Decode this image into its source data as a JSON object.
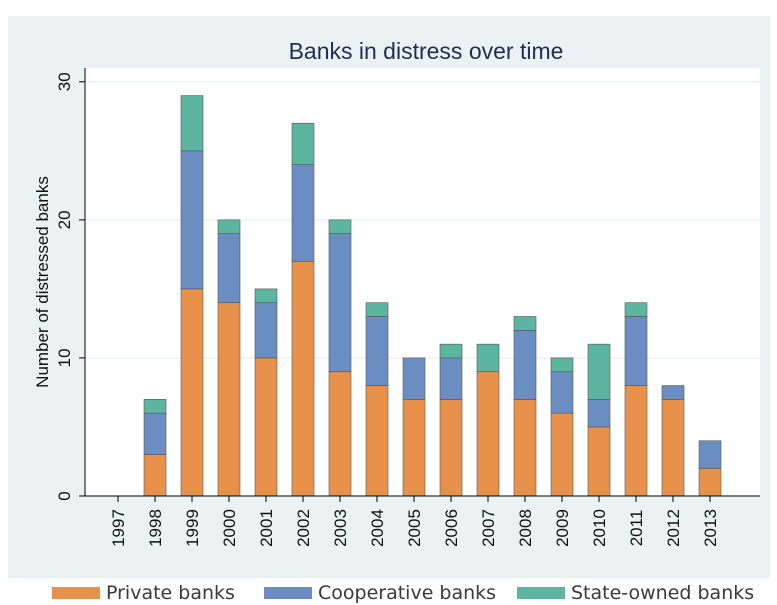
{
  "chart_data": {
    "type": "bar",
    "stacked": true,
    "title": "Banks in distress over time",
    "xlabel": "",
    "ylabel": "Number of distressed banks",
    "categories": [
      "1997",
      "1998",
      "1999",
      "2000",
      "2001",
      "2002",
      "2003",
      "2004",
      "2005",
      "2006",
      "2007",
      "2008",
      "2009",
      "2010",
      "2011",
      "2012",
      "2013"
    ],
    "ylim": [
      0,
      31
    ],
    "yticks": [
      "0",
      "10",
      "20",
      "30"
    ],
    "grid": true,
    "legend_position": "bottom",
    "series": [
      {
        "name": "Private banks",
        "color": "#E8914A",
        "values": [
          0,
          3,
          15,
          14,
          10,
          17,
          9,
          8,
          7,
          7,
          9,
          7,
          6,
          5,
          8,
          7,
          2
        ]
      },
      {
        "name": "Cooperative banks",
        "color": "#6B8EC2",
        "values": [
          0,
          3,
          10,
          5,
          4,
          7,
          10,
          5,
          3,
          3,
          0,
          5,
          3,
          2,
          5,
          1,
          2
        ]
      },
      {
        "name": "State-owned banks",
        "color": "#5BB5A0",
        "values": [
          0,
          1,
          4,
          1,
          1,
          3,
          1,
          1,
          0,
          1,
          2,
          1,
          1,
          4,
          1,
          0,
          0
        ]
      }
    ]
  }
}
